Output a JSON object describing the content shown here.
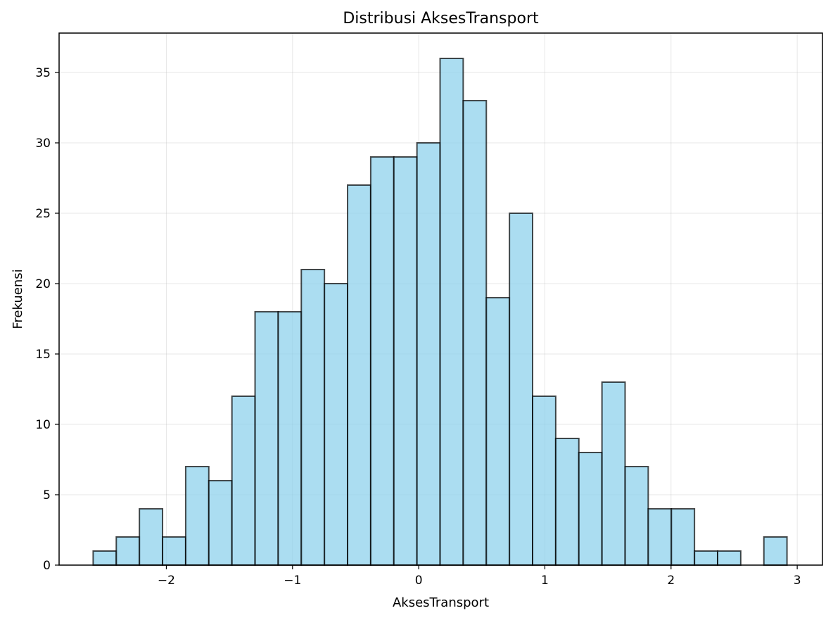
{
  "chart_data": {
    "type": "bar",
    "title": "Distribusi AksesTransport",
    "xlabel": "AksesTransport",
    "ylabel": "Frekuensi",
    "bins": {
      "start": -2.58,
      "width": 0.1833,
      "counts": [
        1,
        2,
        4,
        2,
        7,
        6,
        12,
        18,
        18,
        21,
        20,
        27,
        29,
        29,
        30,
        36,
        33,
        19,
        25,
        12,
        9,
        8,
        13,
        7,
        4,
        4,
        1,
        1,
        0,
        2
      ]
    },
    "xlim": [
      -2.85,
      3.2
    ],
    "ylim": [
      0,
      37.8
    ],
    "xticks": [
      -2,
      -1,
      0,
      1,
      2,
      3
    ],
    "xtick_labels": [
      "−2",
      "−1",
      "0",
      "1",
      "2",
      "3"
    ],
    "yticks": [
      0,
      5,
      10,
      15,
      20,
      25,
      30,
      35
    ],
    "ytick_labels": [
      "0",
      "5",
      "10",
      "15",
      "20",
      "25",
      "30",
      "35"
    ],
    "grid": true,
    "colors": {
      "bar_fill": "#87CEEB",
      "bar_fill_opacity": 0.7,
      "bar_edge": "#000000",
      "grid": "#b0b0b0"
    }
  }
}
